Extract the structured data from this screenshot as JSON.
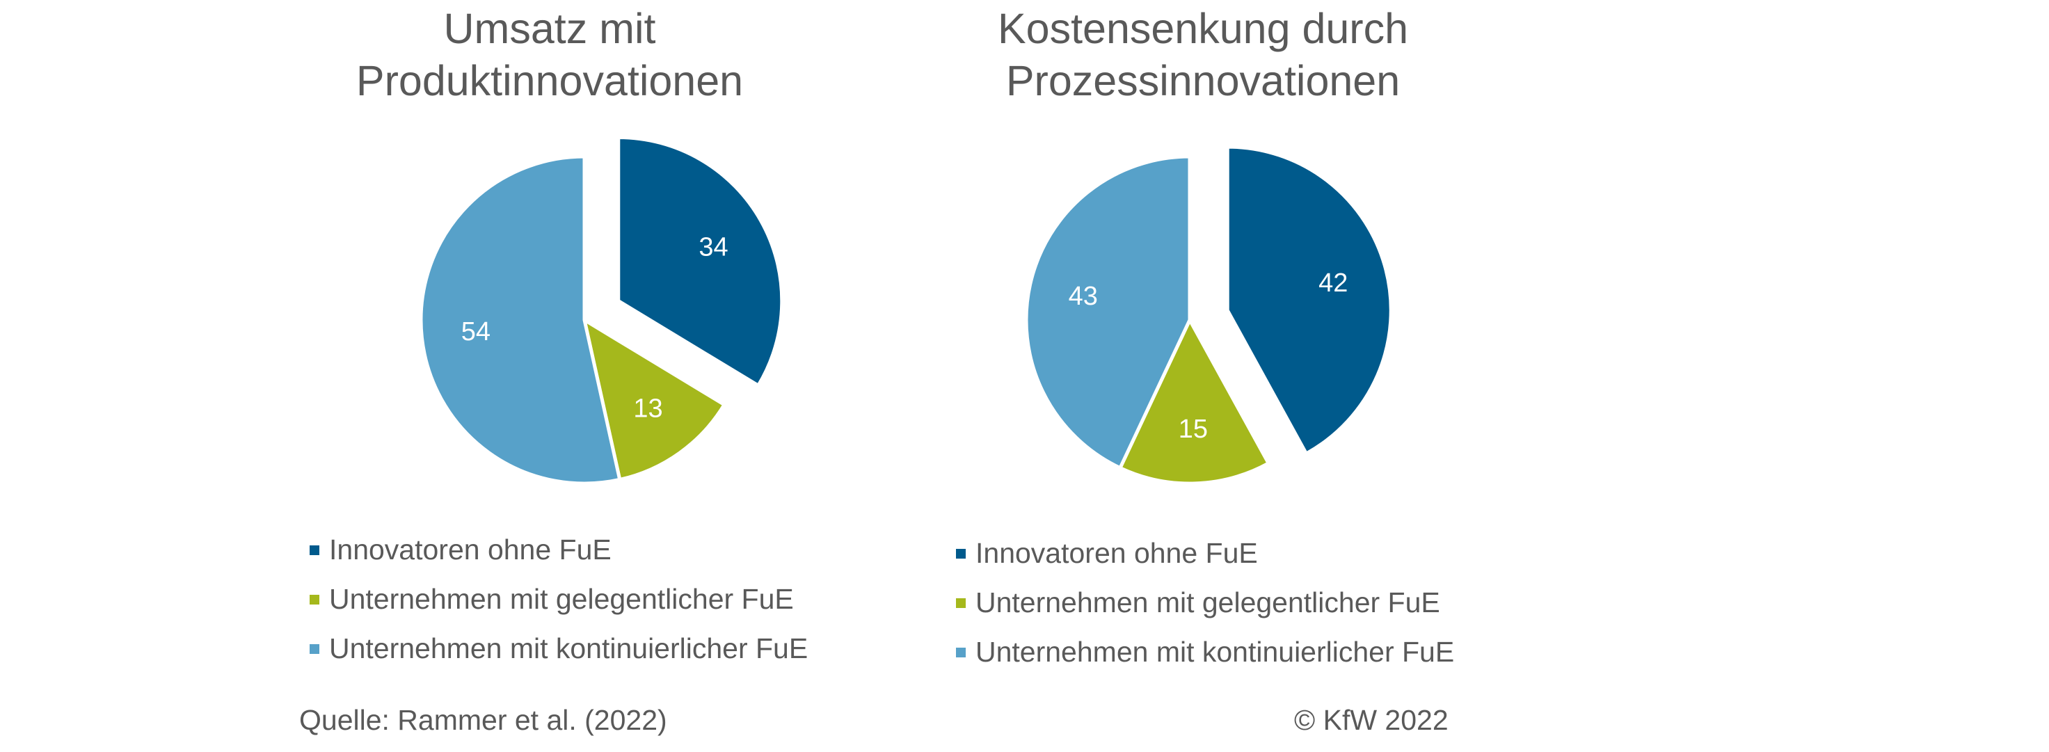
{
  "chart_data": [
    {
      "type": "pie",
      "title": "Umsatz mit Produktinnovationen",
      "title_lines": [
        "Umsatz mit",
        "Produktinnovationen"
      ],
      "slices": [
        {
          "label": "Innovatoren ohne FuE",
          "value": 34,
          "color": "#005A8C",
          "exploded": true
        },
        {
          "label": "Unternehmen mit gelegentlicher FuE",
          "value": 13,
          "color": "#A5B81C",
          "exploded": false
        },
        {
          "label": "Unternehmen mit kontinuierlicher FuE",
          "value": 54,
          "color": "#57A1C9",
          "exploded": false
        }
      ],
      "legend": [
        "Innovatoren ohne FuE",
        "Unternehmen mit gelegentlicher FuE",
        "Unternehmen mit kontinuierlicher FuE"
      ],
      "legend_position": "bottom"
    },
    {
      "type": "pie",
      "title": "Kostensenkung durch Prozessinnovationen",
      "title_lines": [
        "Kostensenkung durch",
        "Prozessinnovationen"
      ],
      "slices": [
        {
          "label": "Innovatoren ohne FuE",
          "value": 42,
          "color": "#005A8C",
          "exploded": true
        },
        {
          "label": "Unternehmen mit gelegentlicher FuE",
          "value": 15,
          "color": "#A5B81C",
          "exploded": false
        },
        {
          "label": "Unternehmen mit kontinuierlicher FuE",
          "value": 43,
          "color": "#57A1C9",
          "exploded": false
        }
      ],
      "legend": [
        "Innovatoren ohne FuE",
        "Unternehmen mit gelegentlicher FuE",
        "Unternehmen mit kontinuierlicher FuE"
      ],
      "legend_position": "bottom"
    }
  ],
  "footer": {
    "source": "Quelle: Rammer et al. (2022)",
    "copyright": "©  KfW 2022"
  },
  "colors": {
    "text": "#595959",
    "label": "#FFFFFF",
    "innovators": "#005A8C",
    "occasional": "#A5B81C",
    "continuous": "#57A1C9"
  }
}
